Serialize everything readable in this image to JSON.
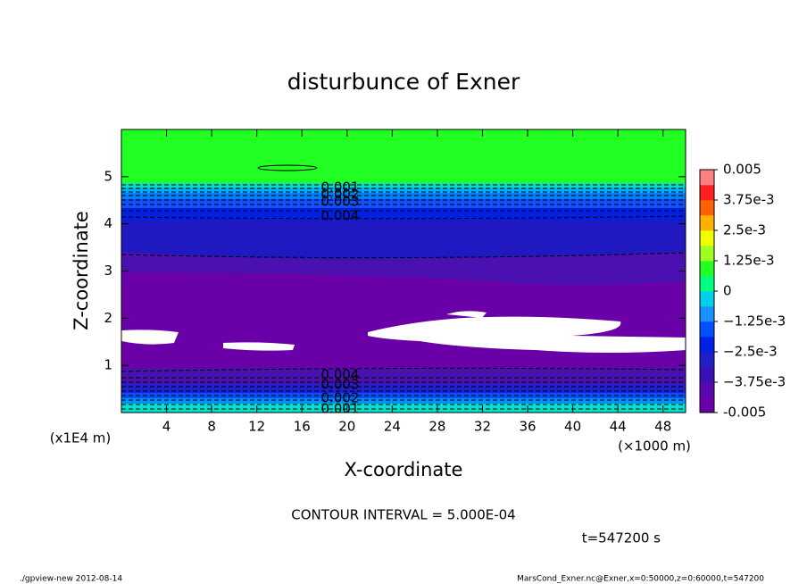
{
  "chart_data": {
    "type": "contour",
    "title": "disturbunce of Exner",
    "x_label": "X-coordinate",
    "y_label": "Z-coordinate",
    "x_unit": "(×1000 m)",
    "y_unit": "(x1E4 m)",
    "xlim": [
      0,
      50
    ],
    "xticks": [
      4,
      8,
      12,
      16,
      20,
      24,
      28,
      32,
      36,
      40,
      44,
      48
    ],
    "ylim": [
      0,
      6
    ],
    "yticks": [
      1,
      2,
      3,
      4,
      5
    ],
    "colorbar_lim": [
      -0.005,
      0.005
    ],
    "colorbar_ticks": [
      -0.005,
      {
        "value": -0.00375,
        "label": "−3.75e-3"
      },
      {
        "value": -0.0025,
        "label": "−2.5e-3"
      },
      {
        "value": -0.00125,
        "label": "−1.25e-3"
      },
      0,
      {
        "value": 0.00125,
        "label": "1.25e-3"
      },
      {
        "value": 0.0025,
        "label": "2.5e-3"
      },
      {
        "value": 0.00375,
        "label": "3.75e-3"
      },
      0.005
    ],
    "colors": [
      "#6a00a8",
      "#5a08b0",
      "#3a10b8",
      "#2020c8",
      "#0020e8",
      "#0050ff",
      "#1890ff",
      "#00d0e8",
      "#00ff80",
      "#22ff22",
      "#a0ff20",
      "#f0ff00",
      "#ffb000",
      "#ff6000",
      "#ff2020",
      "#ff8080"
    ],
    "top_contour_labels": [
      "0.001",
      "0.002",
      "0.003",
      "0.004"
    ],
    "bottom_contour_labels": [
      "0.004",
      "0.003",
      "0.002",
      "0.001"
    ],
    "contour_interval": "CONTOUR INTERVAL = 5.000E-04",
    "time_label": "t=547200 s",
    "footer_left": "./gpview-new   2012-08-14",
    "footer_right": "MarsCond_Exner.nc@Exner,x=0:50000,z=0:60000,t=547200"
  }
}
